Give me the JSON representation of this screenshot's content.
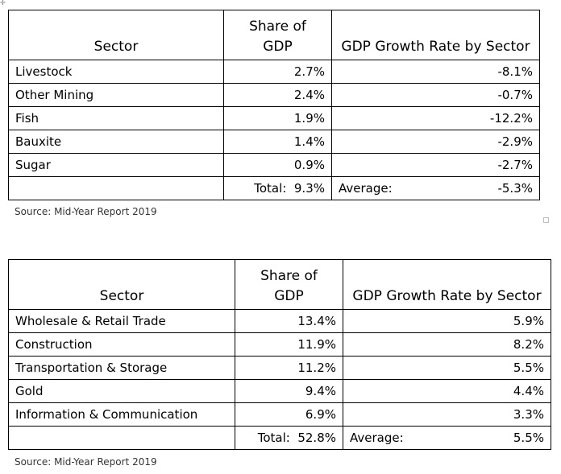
{
  "table1": {
    "headers": {
      "sector": "Sector",
      "share": "Share of\nGDP",
      "growth": "GDP Growth Rate by Sector"
    },
    "rows": [
      {
        "sector": "Livestock",
        "share": "2.7%",
        "growth": "-8.1%"
      },
      {
        "sector": "Other Mining",
        "share": "2.4%",
        "growth": "-0.7%"
      },
      {
        "sector": "Fish",
        "share": "1.9%",
        "growth": "-12.2%"
      },
      {
        "sector": "Bauxite",
        "share": "1.4%",
        "growth": "-2.9%"
      },
      {
        "sector": "Sugar",
        "share": "0.9%",
        "growth": "-2.7%"
      }
    ],
    "total_label": "Total:",
    "total_value": "9.3%",
    "average_label": "Average:",
    "average_value": "-5.3%",
    "source": "Source: Mid-Year Report 2019"
  },
  "table2": {
    "headers": {
      "sector": "Sector",
      "share": "Share of\nGDP",
      "growth": "GDP Growth Rate by Sector"
    },
    "rows": [
      {
        "sector": "Wholesale & Retail Trade",
        "share": "13.4%",
        "growth": "5.9%"
      },
      {
        "sector": "Construction",
        "share": "11.9%",
        "growth": "8.2%"
      },
      {
        "sector": "Transportation & Storage",
        "share": "11.2%",
        "growth": "5.5%"
      },
      {
        "sector": "Gold",
        "share": "9.4%",
        "growth": "4.4%"
      },
      {
        "sector": "Information & Communication",
        "share": "6.9%",
        "growth": "3.3%"
      }
    ],
    "total_label": "Total:",
    "total_value": "52.8%",
    "average_label": "Average:",
    "average_value": "5.5%",
    "source": "Source: Mid-Year Report 2019"
  }
}
